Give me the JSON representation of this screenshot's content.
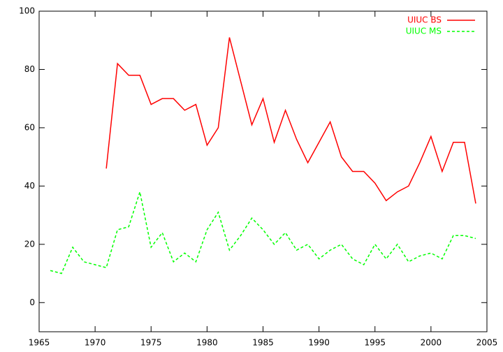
{
  "chart_data": {
    "type": "line",
    "x": [
      1966,
      1967,
      1968,
      1969,
      1970,
      1971,
      1972,
      1973,
      1974,
      1975,
      1976,
      1977,
      1978,
      1979,
      1980,
      1981,
      1982,
      1983,
      1984,
      1985,
      1986,
      1987,
      1988,
      1989,
      1990,
      1991,
      1992,
      1993,
      1994,
      1995,
      1996,
      1997,
      1998,
      1999,
      2000,
      2001,
      2002,
      2003,
      2004
    ],
    "series": [
      {
        "name": "UIUC BS",
        "color": "#ff0000",
        "dashed": false,
        "values": [
          null,
          null,
          null,
          null,
          null,
          46,
          82,
          78,
          78,
          68,
          70,
          70,
          66,
          68,
          54,
          60,
          91,
          76,
          61,
          70,
          55,
          66,
          56,
          48,
          55,
          62,
          50,
          45,
          45,
          41,
          35,
          38,
          40,
          48,
          57,
          45,
          55,
          55,
          34
        ]
      },
      {
        "name": "UIUC MS",
        "color": "#00ff00",
        "dashed": true,
        "values": [
          11,
          10,
          19,
          14,
          13,
          12,
          25,
          26,
          38,
          19,
          24,
          14,
          17,
          14,
          25,
          31,
          18,
          23,
          29,
          25,
          20,
          24,
          18,
          20,
          15,
          18,
          20,
          15,
          13,
          20,
          15,
          20,
          14,
          16,
          17,
          15,
          23,
          23,
          22
        ]
      }
    ],
    "xlim": [
      1965,
      2005
    ],
    "xticks": [
      1965,
      1970,
      1975,
      1980,
      1985,
      1990,
      1995,
      2000,
      2005
    ],
    "ylim": [
      -10,
      100
    ],
    "yticks": [
      0,
      20,
      40,
      60,
      80,
      100
    ],
    "grid": false,
    "legend": "top-right"
  }
}
